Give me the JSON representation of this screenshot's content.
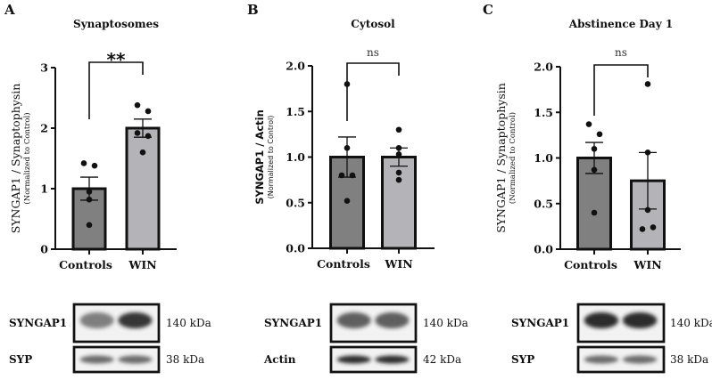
{
  "colors": {
    "controls": "#808080",
    "win": "#b4b4b8",
    "axis": "#111111"
  },
  "chart_data": [
    {
      "type": "bar",
      "panel": "A",
      "title": "Synaptosomes",
      "ylabel": "SYNGAP1 / Synaptophysin",
      "ylabel_sub": "(Normalized to Control)",
      "categories": [
        "Controls",
        "WIN"
      ],
      "values": [
        1.0,
        2.0
      ],
      "sem": [
        0.19,
        0.15
      ],
      "points": [
        [
          1.42,
          1.38,
          0.95,
          0.82,
          0.4
        ],
        [
          2.38,
          2.28,
          1.92,
          1.87,
          1.6
        ]
      ],
      "ylim": [
        0,
        3
      ],
      "yticks": [
        "0",
        "1",
        "2",
        "3"
      ],
      "significance": "**",
      "blot": {
        "rows": [
          {
            "label": "SYNGAP1",
            "kda": "140 kDa"
          },
          {
            "label": "SYP",
            "kda": "38 kDa"
          }
        ]
      }
    },
    {
      "type": "bar",
      "panel": "B",
      "title": "Cytosol",
      "ylabel": "SYNGAP1 / Actin",
      "ylabel_sub": "(Normalized to Control)",
      "categories": [
        "Controls",
        "WIN"
      ],
      "values": [
        1.0,
        1.0
      ],
      "sem": [
        0.22,
        0.1
      ],
      "points": [
        [
          1.8,
          1.1,
          0.8,
          0.8,
          0.52
        ],
        [
          1.3,
          1.1,
          1.03,
          0.83,
          0.75
        ]
      ],
      "ylim": [
        0,
        2
      ],
      "yticks": [
        "0.0",
        "0.5",
        "1.0",
        "1.5",
        "2.0"
      ],
      "significance": "ns",
      "blot": {
        "rows": [
          {
            "label": "SYNGAP1",
            "kda": "140 kDa"
          },
          {
            "label": "Actin",
            "kda": "42 kDa"
          }
        ]
      }
    },
    {
      "type": "bar",
      "panel": "C",
      "title": "Abstinence Day 1",
      "ylabel": "SYNGAP1 / Synaptophysin",
      "ylabel_sub": "(Normalized to Control)",
      "categories": [
        "Controls",
        "WIN"
      ],
      "values": [
        1.0,
        0.75
      ],
      "sem": [
        0.17,
        0.31
      ],
      "points": [
        [
          1.37,
          1.26,
          1.1,
          0.87,
          0.4
        ],
        [
          1.81,
          1.06,
          0.43,
          0.22,
          0.24
        ]
      ],
      "ylim": [
        0,
        2
      ],
      "yticks": [
        "0.0",
        "0.5",
        "1.0",
        "1.5",
        "2.0"
      ],
      "significance": "ns",
      "blot": {
        "rows": [
          {
            "label": "SYNGAP1",
            "kda": "140 kDa"
          },
          {
            "label": "SYP",
            "kda": "38 kDa"
          }
        ]
      }
    }
  ]
}
